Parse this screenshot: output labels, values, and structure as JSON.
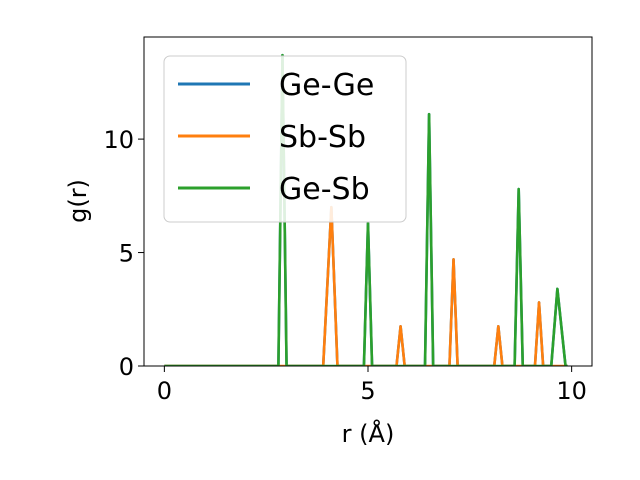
{
  "chart_data": {
    "type": "line",
    "title": "",
    "xlabel": "r (Å)",
    "ylabel": "g(r)",
    "xlim": [
      -0.5,
      10.5
    ],
    "ylim": [
      0,
      14.5
    ],
    "xticks": [
      0,
      5,
      10
    ],
    "yticks": [
      0,
      5,
      10
    ],
    "xtick_labels": [
      "0",
      "5",
      "10"
    ],
    "ytick_labels": [
      "0",
      "5",
      "10"
    ],
    "grid": false,
    "legend_position": "top-left",
    "series": [
      {
        "name": "Ge-Ge",
        "color": "#1f77b4",
        "x": [
          0.0,
          2.8,
          2.9,
          3.0,
          3.9,
          4.1,
          4.25,
          4.9,
          5.0,
          5.1,
          5.7,
          5.8,
          5.9,
          6.4,
          6.5,
          6.6,
          7.0,
          7.1,
          7.2,
          8.1,
          8.2,
          8.3,
          8.6,
          8.7,
          8.8,
          9.1,
          9.2,
          9.3,
          9.5,
          9.65,
          9.85,
          9.9
        ],
        "y": [
          0.0,
          0.0,
          13.7,
          0.0,
          0.0,
          7.0,
          0.0,
          0.0,
          6.3,
          0.0,
          0.0,
          1.75,
          0.0,
          0.0,
          11.1,
          0.0,
          0.0,
          4.7,
          0.0,
          0.0,
          1.75,
          0.0,
          0.0,
          7.8,
          0.0,
          0.0,
          2.8,
          0.0,
          0.0,
          3.4,
          0.0,
          0.0
        ]
      },
      {
        "name": "Sb-Sb",
        "color": "#ff7f0e",
        "x": [
          0.0,
          3.9,
          4.1,
          4.25,
          5.7,
          5.8,
          5.9,
          7.0,
          7.1,
          7.2,
          8.1,
          8.2,
          8.3,
          9.1,
          9.2,
          9.3,
          9.9
        ],
        "y": [
          0.0,
          0.0,
          7.0,
          0.0,
          0.0,
          1.75,
          0.0,
          0.0,
          4.7,
          0.0,
          0.0,
          1.75,
          0.0,
          0.0,
          2.8,
          0.0,
          0.0
        ]
      },
      {
        "name": "Ge-Sb",
        "color": "#2ca02c",
        "x": [
          0.0,
          2.8,
          2.9,
          3.0,
          4.9,
          5.0,
          5.1,
          6.4,
          6.5,
          6.6,
          8.6,
          8.7,
          8.8,
          9.5,
          9.65,
          9.85,
          9.9
        ],
        "y": [
          0.0,
          0.0,
          13.7,
          0.0,
          0.0,
          6.3,
          0.0,
          0.0,
          11.1,
          0.0,
          0.0,
          7.8,
          0.0,
          0.0,
          3.4,
          0.0,
          0.0
        ]
      }
    ]
  }
}
